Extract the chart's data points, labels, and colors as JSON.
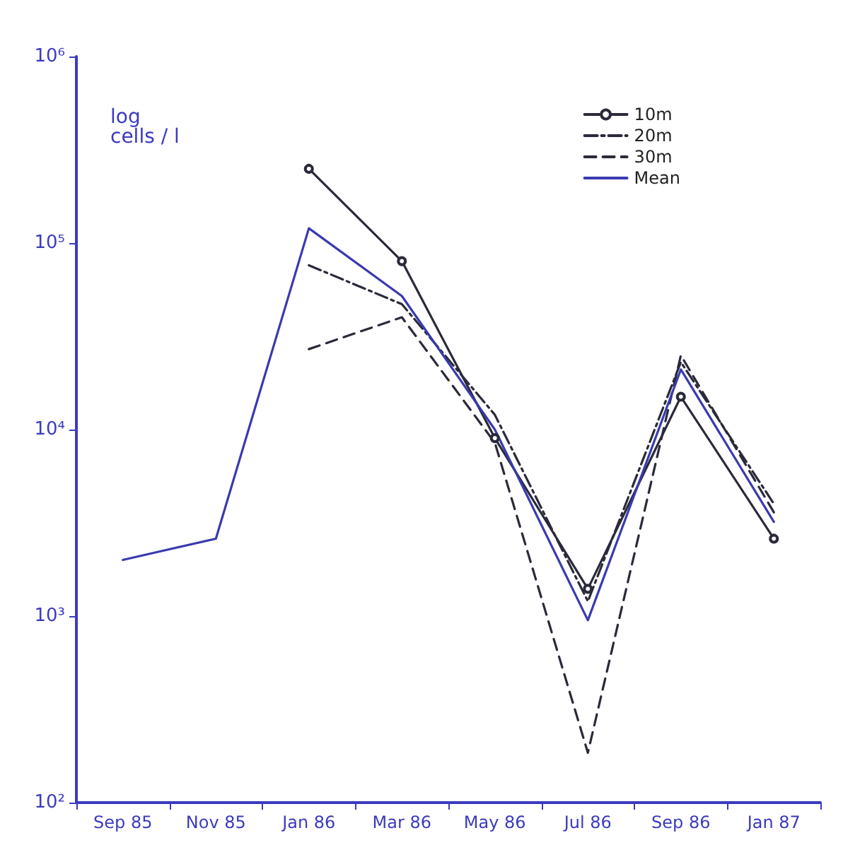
{
  "chart_data": {
    "type": "line",
    "ylabel": "log cells / l",
    "categories": [
      "Sep 85",
      "Nov 85",
      "Jan 86",
      "Mar 86",
      "May 86",
      "Jul 86",
      "Sep 86",
      "Jan 87"
    ],
    "series": [
      {
        "name": "10m",
        "color": "#2a2a3a",
        "marker": "circle",
        "line_style": "solid",
        "values": [
          null,
          null,
          250000,
          80000,
          9000,
          1400,
          15000,
          2600
        ]
      },
      {
        "name": "20m",
        "color": "#2a2a3a",
        "marker": "none",
        "line_style": "dashdot",
        "values": [
          null,
          null,
          76000,
          47000,
          12000,
          1200,
          23000,
          4000
        ]
      },
      {
        "name": "30m",
        "color": "#2a2a3a",
        "marker": "none",
        "line_style": "dashed",
        "values": [
          null,
          null,
          27000,
          40000,
          8500,
          185,
          25000,
          3600
        ]
      },
      {
        "name": "Mean",
        "color": "#3a3ab0",
        "marker": "none",
        "line_style": "solid",
        "values": [
          2000,
          2600,
          120000,
          52000,
          10000,
          950,
          21000,
          3200
        ]
      }
    ],
    "log": true,
    "ylim": [
      100,
      1000000
    ],
    "yticks": [
      {
        "value": 100,
        "label": "10²"
      },
      {
        "value": 1000,
        "label": "10³"
      },
      {
        "value": 10000,
        "label": "10⁴"
      },
      {
        "value": 100000,
        "label": "10⁵"
      },
      {
        "value": 1000000,
        "label": "10⁶"
      }
    ],
    "grid": false,
    "legend": "top right"
  }
}
